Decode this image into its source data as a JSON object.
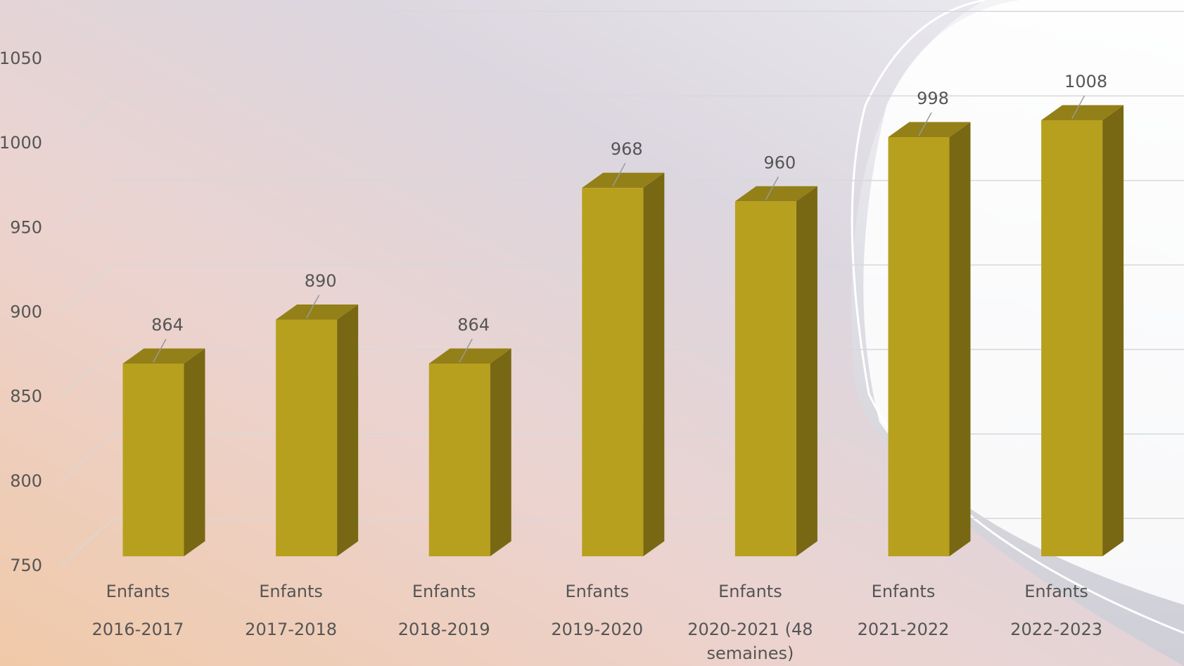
{
  "chart_data": {
    "type": "bar3d",
    "categories": [
      "2016-2017",
      "2017-2018",
      "2018-2019",
      "2019-2020",
      "2020-2021 (48 semaines)",
      "2021-2022",
      "2022-2023"
    ],
    "series": [
      {
        "name": "Enfants",
        "color": "#b8a01f",
        "values": [
          864,
          890,
          864,
          968,
          960,
          998,
          1008
        ]
      }
    ],
    "ylim": [
      750,
      1050
    ],
    "yticks": [
      750,
      800,
      850,
      900,
      950,
      1000,
      1050
    ],
    "grid": true
  }
}
